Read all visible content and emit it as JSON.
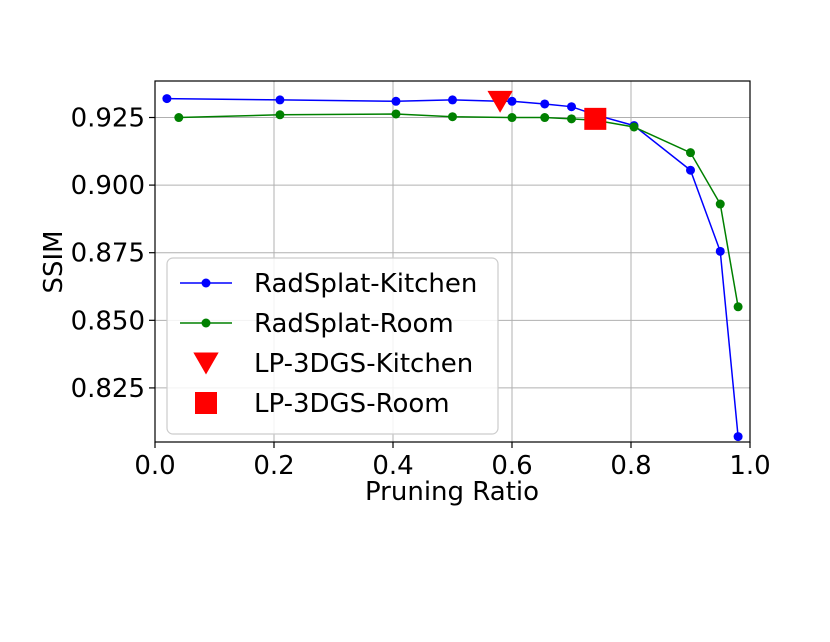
{
  "chart_data": {
    "type": "line",
    "title": "",
    "xlabel": "Pruning Ratio",
    "ylabel": "SSIM",
    "xlim": [
      0.0,
      1.0
    ],
    "ylim": [
      0.805,
      0.9385
    ],
    "xticks": [
      0.0,
      0.2,
      0.4,
      0.6,
      0.8,
      1.0
    ],
    "xtick_labels": [
      "0.0",
      "0.2",
      "0.4",
      "0.6",
      "0.8",
      "1.0"
    ],
    "yticks": [
      0.825,
      0.85,
      0.875,
      0.9,
      0.925
    ],
    "ytick_labels": [
      "0.825",
      "0.850",
      "0.875",
      "0.900",
      "0.925"
    ],
    "grid": true,
    "legend_position": "center-left",
    "series": [
      {
        "name": "RadSplat-Kitchen",
        "kind": "line",
        "marker": "circle",
        "color": "#0000ff",
        "x": [
          0.02,
          0.21,
          0.405,
          0.5,
          0.58,
          0.6,
          0.655,
          0.7,
          0.74,
          0.805,
          0.9,
          0.95,
          0.98
        ],
        "y": [
          0.932,
          0.9315,
          0.931,
          0.9315,
          0.931,
          0.931,
          0.93,
          0.929,
          0.926,
          0.922,
          0.9055,
          0.8755,
          0.807
        ]
      },
      {
        "name": "RadSplat-Room",
        "kind": "line",
        "marker": "circle",
        "color": "#008000",
        "x": [
          0.04,
          0.21,
          0.405,
          0.5,
          0.6,
          0.655,
          0.7,
          0.74,
          0.805,
          0.9,
          0.95,
          0.98
        ],
        "y": [
          0.925,
          0.926,
          0.9263,
          0.9253,
          0.925,
          0.925,
          0.9245,
          0.924,
          0.9215,
          0.912,
          0.893,
          0.855
        ]
      },
      {
        "name": "LP-3DGS-Kitchen",
        "kind": "point",
        "marker": "triangle-down",
        "color": "#ff0000",
        "x": [
          0.58
        ],
        "y": [
          0.931
        ]
      },
      {
        "name": "LP-3DGS-Room",
        "kind": "point",
        "marker": "square",
        "color": "#ff0000",
        "x": [
          0.74
        ],
        "y": [
          0.9245
        ]
      }
    ]
  }
}
